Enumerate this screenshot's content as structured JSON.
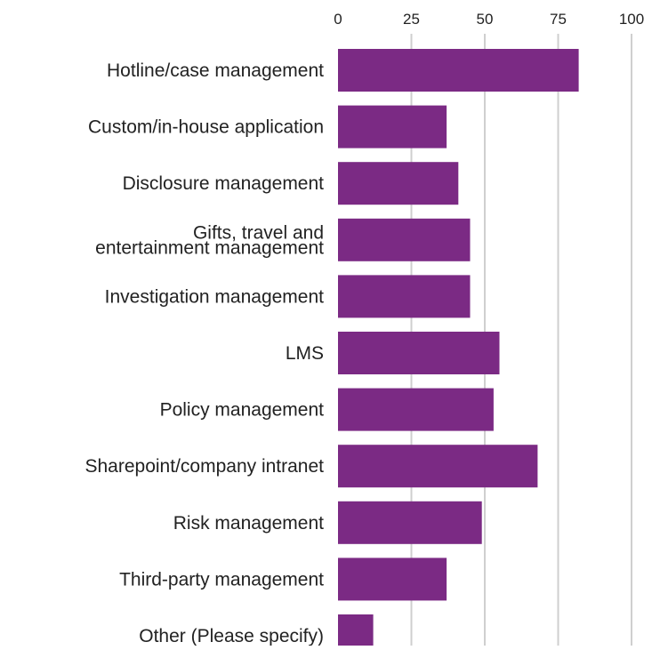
{
  "chart_data": {
    "type": "bar",
    "orientation": "horizontal",
    "categories": [
      [
        "Hotline/case management"
      ],
      [
        "Custom/in-house application"
      ],
      [
        "Disclosure management"
      ],
      [
        "Gifts, travel and",
        "entertainment management"
      ],
      [
        "Investigation management"
      ],
      [
        "LMS"
      ],
      [
        "Policy management"
      ],
      [
        "Sharepoint/company intranet"
      ],
      [
        "Risk management"
      ],
      [
        "Third-party management"
      ],
      [
        "Other (Please specify)"
      ]
    ],
    "values": [
      82,
      37,
      41,
      45,
      45,
      55,
      53,
      68,
      49,
      37,
      12
    ],
    "xlim": [
      0,
      100
    ],
    "xticks": [
      "0",
      "25",
      "50",
      "75",
      "100"
    ],
    "xtick_values": [
      0,
      25,
      50,
      75,
      100
    ],
    "grid": true,
    "bar_color": "#7b2a84",
    "grid_color": "#cfcfcf"
  }
}
